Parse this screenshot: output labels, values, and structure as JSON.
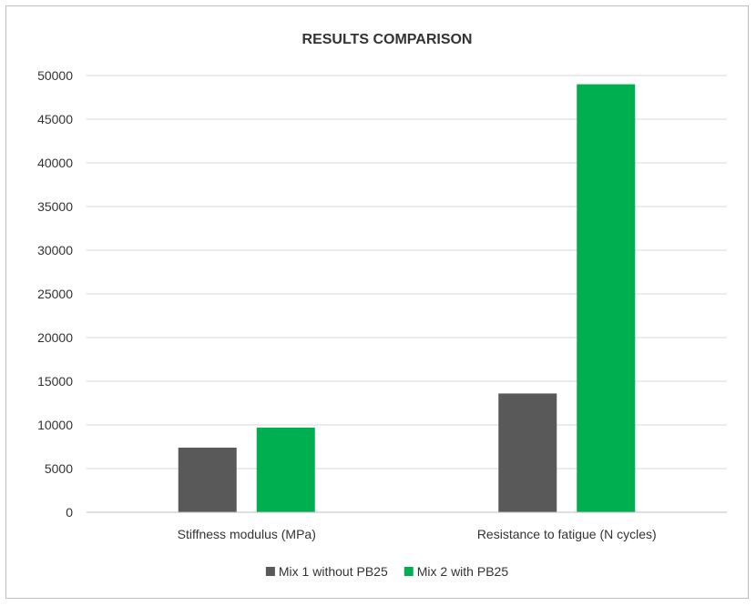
{
  "chart_data": {
    "type": "bar",
    "title": "RESULTS COMPARISON",
    "xlabel": "",
    "ylabel": "",
    "categories": [
      "Stiffness modulus (MPa)",
      "Resistance to fatigue (N cycles)"
    ],
    "series": [
      {
        "name": "Mix 1 without PB25",
        "values": [
          7400,
          13600
        ],
        "color": "#595959"
      },
      {
        "name": "Mix 2 with PB25",
        "values": [
          9700,
          49000
        ],
        "color": "#00b050"
      }
    ],
    "ylim": [
      0,
      50000
    ],
    "yticks": [
      0,
      5000,
      10000,
      15000,
      20000,
      25000,
      30000,
      35000,
      40000,
      45000,
      50000
    ],
    "grid": true,
    "legend_position": "bottom",
    "gridline_color": "#d9d9d9",
    "axis_color": "#bfbfbf"
  }
}
